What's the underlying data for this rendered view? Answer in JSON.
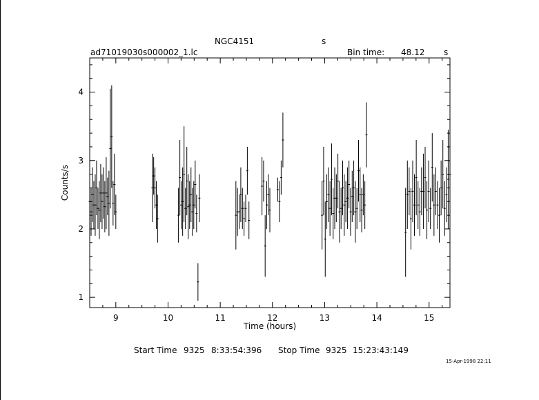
{
  "header": {
    "object": "NGC4151",
    "object_suffix": "s",
    "filename": "ad71019030s000002_1.lc",
    "bin_label": "Bin time:",
    "bin_value": "48.12",
    "bin_unit": "s"
  },
  "footer": {
    "start_label": "Start Time",
    "start_day": "9325",
    "start_clock": "8:33:54:396",
    "stop_label": "Stop Time",
    "stop_day": "9325",
    "stop_clock": "15:23:43:149",
    "stamp": "15-Apr-1998 22:11"
  },
  "chart_data": {
    "type": "scatter",
    "xlabel": "Time (hours)",
    "ylabel": "Counts/s",
    "xlim": [
      8.5,
      15.4
    ],
    "ylim": [
      0.85,
      4.5
    ],
    "xticks": [
      9,
      10,
      11,
      12,
      13,
      14,
      15
    ],
    "yticks": [
      1,
      2,
      3,
      4
    ],
    "grid": false,
    "series": [
      {
        "segments": [
          {
            "x": [
              8.5,
              9.0
            ],
            "y": [
              [
                2.0,
                2.8
              ],
              [
                1.9,
                2.6
              ],
              [
                2.1,
                2.9
              ],
              [
                2.0,
                2.7
              ],
              [
                1.9,
                2.8
              ],
              [
                2.2,
                3.0
              ],
              [
                2.0,
                2.6
              ],
              [
                1.85,
                2.7
              ],
              [
                2.1,
                2.95
              ],
              [
                2.0,
                2.8
              ],
              [
                2.15,
                2.9
              ],
              [
                1.95,
                2.7
              ],
              [
                2.0,
                3.05
              ],
              [
                2.2,
                2.75
              ],
              [
                1.9,
                2.85
              ],
              [
                2.3,
                4.05
              ],
              [
                2.6,
                4.1
              ],
              [
                2.05,
                2.7
              ],
              [
                2.2,
                3.1
              ],
              [
                2.0,
                2.5
              ]
            ]
          },
          {
            "x": [
              9.7,
              9.8
            ],
            "y": [
              [
                2.1,
                3.1
              ],
              [
                2.5,
                3.05
              ],
              [
                2.3,
                2.9
              ],
              [
                2.0,
                2.7
              ],
              [
                1.8,
                2.5
              ]
            ]
          },
          {
            "x": [
              10.2,
              10.6
            ],
            "y": [
              [
                1.8,
                2.6
              ],
              [
                2.2,
                3.3
              ],
              [
                2.0,
                2.7
              ],
              [
                1.9,
                2.9
              ],
              [
                2.1,
                3.5
              ],
              [
                2.0,
                2.6
              ],
              [
                2.2,
                3.2
              ],
              [
                1.85,
                2.8
              ],
              [
                2.0,
                2.7
              ],
              [
                2.1,
                2.9
              ],
              [
                1.9,
                2.6
              ],
              [
                2.0,
                2.7
              ],
              [
                2.3,
                3.0
              ],
              [
                1.95,
                2.5
              ],
              [
                0.95,
                1.5
              ],
              [
                2.1,
                2.8
              ]
            ]
          },
          {
            "x": [
              11.3,
              11.55
            ],
            "y": [
              [
                1.7,
                2.7
              ],
              [
                1.9,
                2.6
              ],
              [
                2.0,
                2.5
              ],
              [
                2.1,
                2.9
              ],
              [
                2.0,
                2.6
              ],
              [
                1.9,
                2.4
              ],
              [
                2.1,
                2.5
              ],
              [
                2.5,
                3.2
              ],
              [
                1.85,
                2.4
              ]
            ]
          },
          {
            "x": [
              11.8,
              11.95
            ],
            "y": [
              [
                2.2,
                3.05
              ],
              [
                2.4,
                3.0
              ],
              [
                1.3,
                2.2
              ],
              [
                2.0,
                2.7
              ],
              [
                2.2,
                2.8
              ],
              [
                1.95,
                2.6
              ]
            ]
          },
          {
            "x": [
              12.1,
              12.2
            ],
            "y": [
              [
                2.4,
                2.75
              ],
              [
                2.1,
                2.7
              ],
              [
                2.5,
                3.0
              ],
              [
                2.9,
                3.7
              ]
            ]
          },
          {
            "x": [
              12.95,
              13.8
            ],
            "y": [
              [
                1.7,
                2.7
              ],
              [
                2.2,
                3.2
              ],
              [
                1.3,
                2.4
              ],
              [
                2.0,
                2.8
              ],
              [
                2.1,
                2.9
              ],
              [
                1.9,
                2.7
              ],
              [
                2.2,
                3.25
              ],
              [
                1.85,
                2.6
              ],
              [
                2.0,
                2.9
              ],
              [
                2.1,
                2.8
              ],
              [
                2.3,
                3.1
              ],
              [
                1.8,
                2.7
              ],
              [
                2.0,
                2.6
              ],
              [
                2.2,
                3.0
              ],
              [
                1.9,
                2.8
              ],
              [
                2.1,
                2.7
              ],
              [
                2.0,
                2.9
              ],
              [
                2.3,
                3.0
              ],
              [
                1.9,
                2.6
              ],
              [
                2.1,
                2.85
              ],
              [
                2.2,
                3.0
              ],
              [
                1.8,
                2.7
              ],
              [
                2.0,
                2.6
              ],
              [
                2.4,
                3.3
              ],
              [
                2.1,
                2.9
              ],
              [
                1.95,
                2.6
              ],
              [
                2.2,
                2.8
              ],
              [
                2.0,
                2.7
              ],
              [
                2.9,
                3.85
              ]
            ]
          },
          {
            "x": [
              14.55,
              15.4
            ],
            "y": [
              [
                1.3,
                2.6
              ],
              [
                2.0,
                3.0
              ],
              [
                2.2,
                2.9
              ],
              [
                1.7,
                2.6
              ],
              [
                2.1,
                3.0
              ],
              [
                1.9,
                2.8
              ],
              [
                2.2,
                3.3
              ],
              [
                2.0,
                2.7
              ],
              [
                1.9,
                2.6
              ],
              [
                2.2,
                2.9
              ],
              [
                2.0,
                3.1
              ],
              [
                2.3,
                3.2
              ],
              [
                1.85,
                2.7
              ],
              [
                2.1,
                3.0
              ],
              [
                2.0,
                2.6
              ],
              [
                2.4,
                3.4
              ],
              [
                1.9,
                2.8
              ],
              [
                2.2,
                2.9
              ],
              [
                2.0,
                2.7
              ],
              [
                1.8,
                2.6
              ],
              [
                2.2,
                3.0
              ],
              [
                2.3,
                3.3
              ],
              [
                1.9,
                2.7
              ],
              [
                2.1,
                2.9
              ],
              [
                2.0,
                3.45
              ],
              [
                2.2,
                3.4
              ]
            ]
          }
        ]
      }
    ]
  }
}
